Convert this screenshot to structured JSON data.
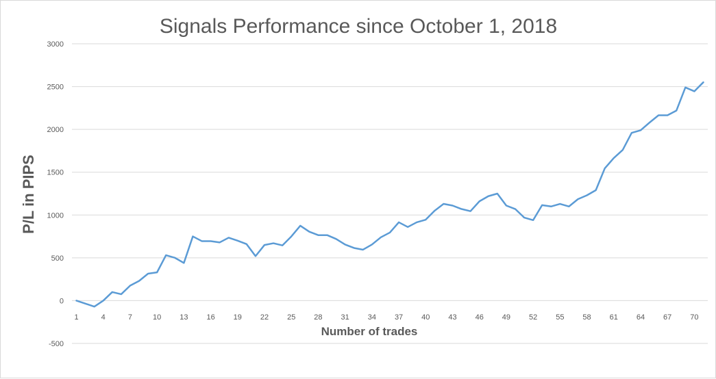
{
  "chart_data": {
    "type": "line",
    "title": "Signals Performance since October 1, 2018",
    "xlabel": "Number of trades",
    "ylabel": "P/L in PIPS",
    "ylim": [
      -500,
      3000
    ],
    "y_ticks": [
      -500,
      0,
      500,
      1000,
      1500,
      2000,
      2500,
      3000
    ],
    "x_ticks": [
      1,
      4,
      7,
      10,
      13,
      16,
      19,
      22,
      25,
      28,
      31,
      34,
      37,
      40,
      43,
      46,
      49,
      52,
      55,
      58,
      61,
      64,
      67,
      70
    ],
    "grid": true,
    "legend": "none",
    "line_color": "#5b9bd5",
    "x": [
      1,
      2,
      3,
      4,
      5,
      6,
      7,
      8,
      9,
      10,
      11,
      12,
      13,
      14,
      15,
      16,
      17,
      18,
      19,
      20,
      21,
      22,
      23,
      24,
      25,
      26,
      27,
      28,
      29,
      30,
      31,
      32,
      33,
      34,
      35,
      36,
      37,
      38,
      39,
      40,
      41,
      42,
      43,
      44,
      45,
      46,
      47,
      48,
      49,
      50,
      51,
      52,
      53,
      54,
      55,
      56,
      57,
      58,
      59,
      60,
      61,
      62,
      63,
      64,
      65,
      66,
      67,
      68,
      69,
      70,
      71
    ],
    "series": [
      {
        "values": [
          0,
          -35,
          -70,
          0,
          100,
          75,
          175,
          230,
          315,
          330,
          530,
          500,
          440,
          750,
          695,
          695,
          680,
          735,
          700,
          660,
          520,
          650,
          670,
          645,
          750,
          875,
          805,
          765,
          765,
          720,
          655,
          615,
          595,
          655,
          740,
          795,
          915,
          860,
          915,
          945,
          1050,
          1130,
          1110,
          1070,
          1045,
          1160,
          1220,
          1250,
          1110,
          1070,
          970,
          940,
          1115,
          1100,
          1130,
          1100,
          1185,
          1230,
          1290,
          1545,
          1665,
          1760,
          1960,
          1990,
          2080,
          2165,
          2165,
          2220,
          2490,
          2445,
          2550
        ]
      }
    ]
  }
}
